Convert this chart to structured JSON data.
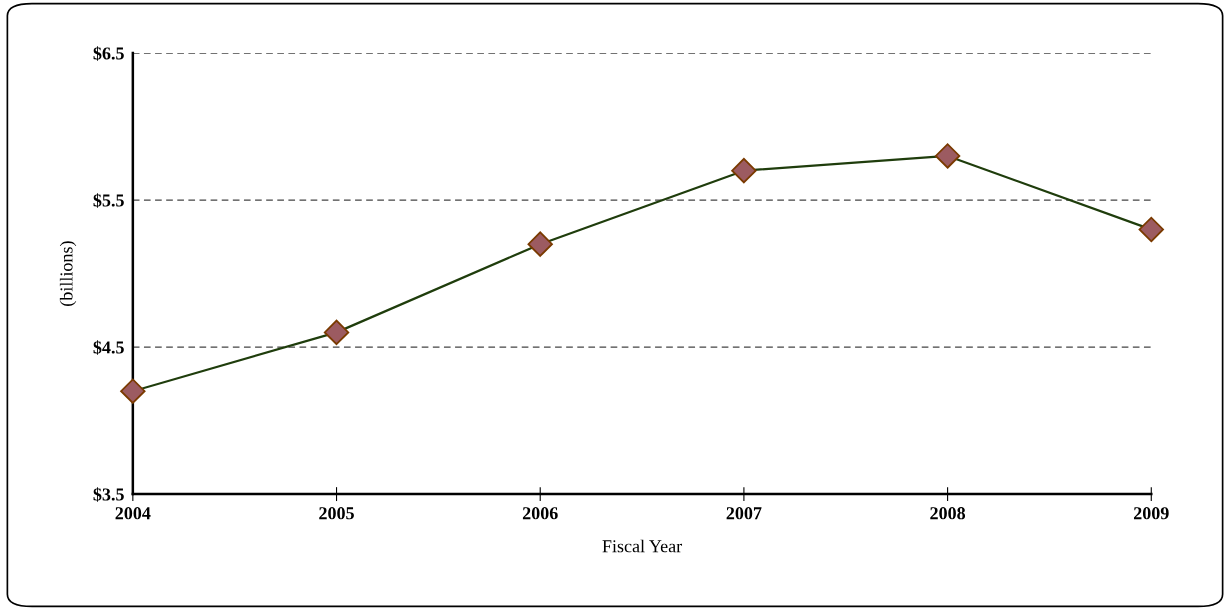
{
  "chart_data": {
    "type": "line",
    "xlabel": "Fiscal Year",
    "ylabel": "(billions)",
    "categories": [
      "2004",
      "2005",
      "2006",
      "2007",
      "2008",
      "2009"
    ],
    "series": [
      {
        "color": "#1f3d0c",
        "values": [
          4.2,
          4.6,
          5.2,
          5.7,
          5.8,
          5.3
        ]
      }
    ],
    "ylim": [
      3.5,
      6.5
    ],
    "yticks": [
      {
        "value": 3.5,
        "label": "$3.5"
      },
      {
        "value": 4.5,
        "label": "$4.5"
      },
      {
        "value": 5.5,
        "label": "$5.5"
      },
      {
        "value": 6.5,
        "label": "$6.5"
      }
    ],
    "grid": "y",
    "marker": "diamond",
    "line_style": "solid"
  }
}
